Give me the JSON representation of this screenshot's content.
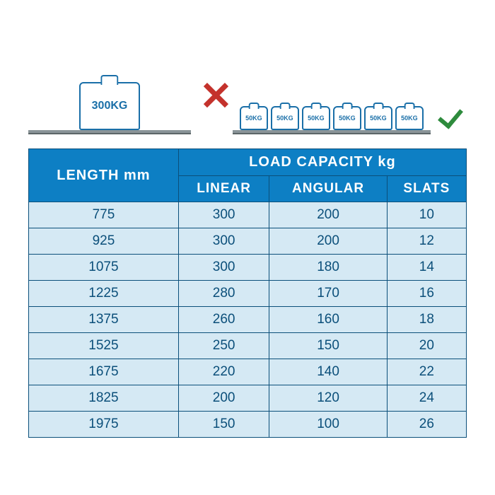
{
  "illustration": {
    "bigWeightLabel": "300KG",
    "smallWeightLabel": "50KG",
    "smallWeightCount": 6
  },
  "table": {
    "headers": {
      "length": "LENGTH mm",
      "capacity": "LOAD CAPACITY kg",
      "linear": "LINEAR",
      "angular": "ANGULAR",
      "slats": "SLATS"
    },
    "rows": [
      {
        "length": "775",
        "linear": "300",
        "angular": "200",
        "slats": "10"
      },
      {
        "length": "925",
        "linear": "300",
        "angular": "200",
        "slats": "12"
      },
      {
        "length": "1075",
        "linear": "300",
        "angular": "180",
        "slats": "14"
      },
      {
        "length": "1225",
        "linear": "280",
        "angular": "170",
        "slats": "16"
      },
      {
        "length": "1375",
        "linear": "260",
        "angular": "160",
        "slats": "18"
      },
      {
        "length": "1525",
        "linear": "250",
        "angular": "150",
        "slats": "20"
      },
      {
        "length": "1675",
        "linear": "220",
        "angular": "140",
        "slats": "22"
      },
      {
        "length": "1825",
        "linear": "200",
        "angular": "120",
        "slats": "24"
      },
      {
        "length": "1975",
        "linear": "150",
        "angular": "100",
        "slats": "26"
      }
    ],
    "colors": {
      "headerBg": "#0d7fc4",
      "headerText": "#ffffff",
      "cellBg": "#d5e9f4",
      "cellText": "#0b4f7a",
      "border": "#0b4f7a"
    },
    "fontSizes": {
      "header": 19,
      "cell": 19
    }
  }
}
